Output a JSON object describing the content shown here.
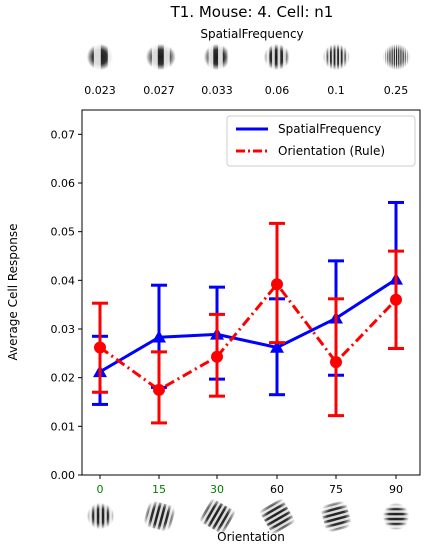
{
  "chart_data": {
    "type": "line",
    "title": "T1. Mouse: 4. Cell: n1",
    "top_axis_label": "SpatialFrequency",
    "top_tick_labels": [
      "0.023",
      "0.027",
      "0.033",
      "0.06",
      "0.1",
      "0.25"
    ],
    "xlabel": "Orientation",
    "ylabel": "Average Cell Response",
    "categories": [
      "0",
      "15",
      "30",
      "60",
      "75",
      "90"
    ],
    "category_label_colors": [
      "#008000",
      "#008000",
      "#008000",
      "#000000",
      "#000000",
      "#000000"
    ],
    "ylim": [
      0,
      0.075
    ],
    "yticks": [
      "0.00",
      "0.01",
      "0.02",
      "0.03",
      "0.04",
      "0.05",
      "0.06",
      "0.07"
    ],
    "grid": false,
    "legend_position": "top-right",
    "series": [
      {
        "name": "SpatialFrequency",
        "color": "#0000ff",
        "line_style": "solid",
        "marker": "triangle",
        "values": [
          0.0212,
          0.0283,
          0.0289,
          0.0262,
          0.0322,
          0.0402
        ],
        "err_low": [
          0.0145,
          0.018,
          0.0197,
          0.0165,
          0.0205,
          0.026
        ],
        "err_high": [
          0.0285,
          0.039,
          0.0386,
          0.0362,
          0.044,
          0.056
        ]
      },
      {
        "name": "Orientation (Rule)",
        "color": "#ff0000",
        "line_style": "dashdot",
        "marker": "circle",
        "values": [
          0.0262,
          0.0175,
          0.0243,
          0.0392,
          0.0232,
          0.036
        ],
        "err_low": [
          0.017,
          0.0107,
          0.0162,
          0.0272,
          0.0122,
          0.026
        ],
        "err_high": [
          0.0353,
          0.0253,
          0.033,
          0.0517,
          0.0362,
          0.046
        ]
      }
    ]
  }
}
